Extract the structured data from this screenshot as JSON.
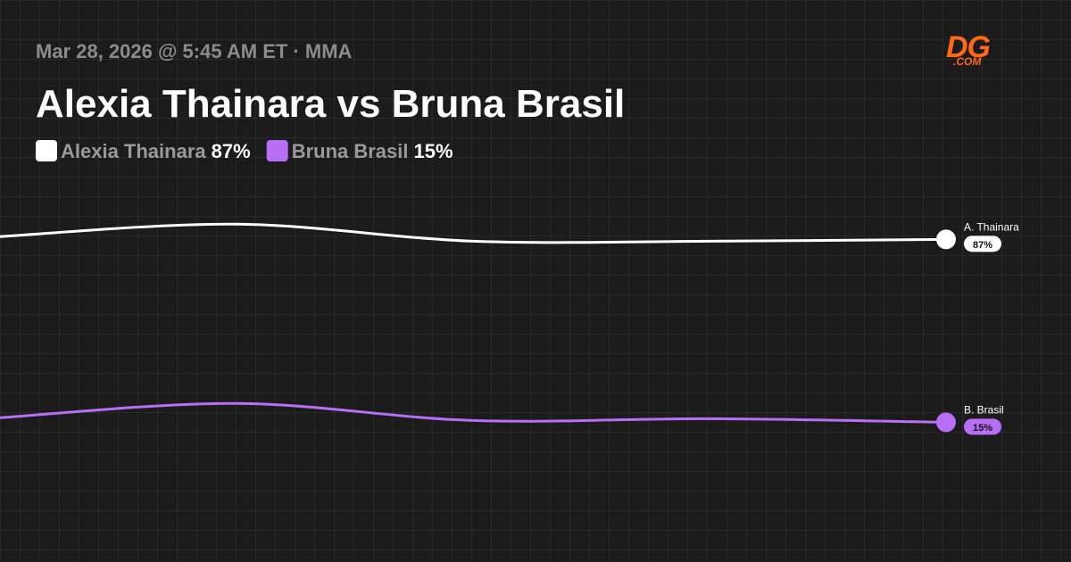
{
  "chart_data": {
    "type": "line",
    "subtitle": "Mar 28, 2026 @ 5:45 AM ET · MMA",
    "title": "Alexia Thainara vs Bruna Brasil",
    "brand": "DG",
    "brand_domain": ".COM",
    "categories": [
      null,
      null,
      null,
      null,
      null
    ],
    "ylim": [
      -40,
      111
    ],
    "series": [
      {
        "name": "Alexia Thainara",
        "label": "A. Thainara",
        "color": "#ffffff",
        "values": [
          88.1,
          93,
          86.3,
          86.3,
          87
        ],
        "value_labels": [
          null,
          null,
          null,
          null,
          "87%"
        ]
      },
      {
        "name": "Bruna Brasil",
        "label": "B. Brasil",
        "color": "#b86ef6",
        "values": [
          16.8,
          22.4,
          15.7,
          16.4,
          15
        ],
        "value_labels": [
          null,
          null,
          null,
          null,
          "15%"
        ]
      }
    ]
  }
}
